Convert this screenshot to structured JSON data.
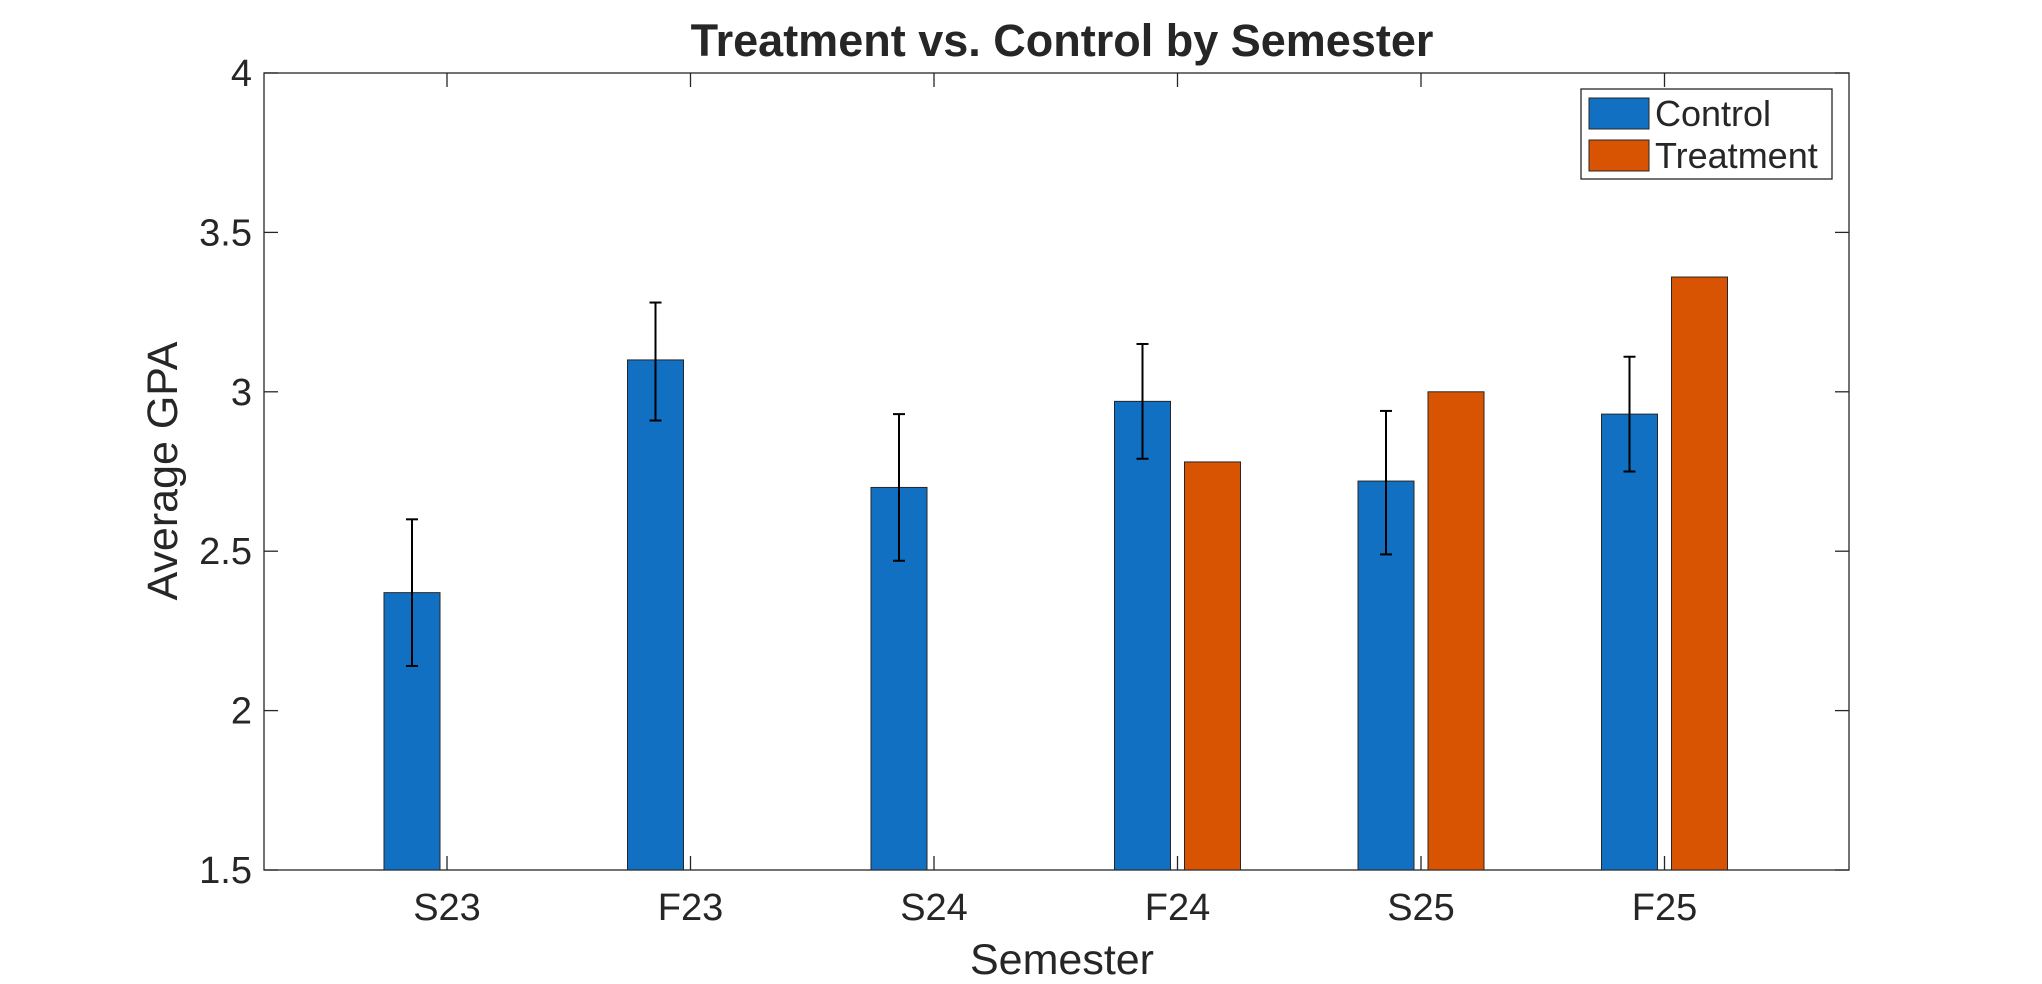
{
  "chart_data": {
    "type": "bar",
    "title": "Treatment vs. Control by Semester",
    "xlabel": "Semester",
    "ylabel": "Average GPA",
    "categories": [
      "S23",
      "F23",
      "S24",
      "F24",
      "S25",
      "F25"
    ],
    "ylim": [
      1.5,
      4
    ],
    "yticks": [
      "1.5",
      "2",
      "2.5",
      "3",
      "3.5",
      "4"
    ],
    "grid": false,
    "legend_position": "top-right",
    "series": [
      {
        "name": "Control",
        "color": "#1170c2",
        "values": [
          2.37,
          3.1,
          2.7,
          2.97,
          2.72,
          2.93
        ],
        "error_low": [
          2.14,
          2.91,
          2.47,
          2.79,
          2.49,
          2.75
        ],
        "error_high": [
          2.6,
          3.28,
          2.93,
          3.15,
          2.94,
          3.11
        ]
      },
      {
        "name": "Treatment",
        "color": "#d95402",
        "values": [
          null,
          null,
          null,
          2.78,
          3.0,
          3.36
        ]
      }
    ]
  }
}
